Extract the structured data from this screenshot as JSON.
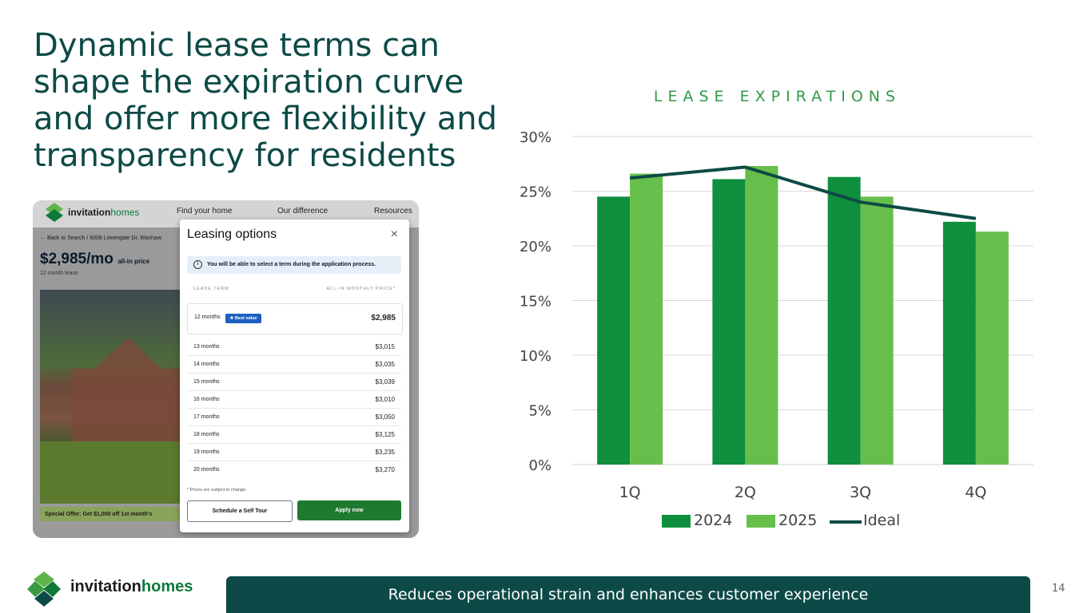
{
  "headline": {
    "lines": [
      "Dynamic lease terms can",
      "shape the expiration curve",
      "and offer more flexibility and",
      "transparency for residents"
    ]
  },
  "screenshot": {
    "brand_bold": "invitation",
    "brand_light": "homes",
    "nav": [
      "Find your home",
      "Our difference",
      "Resources"
    ],
    "back_link": "← Back to Search / 6008 Lowergate Dr, Waxhaw",
    "price": "$2,985/mo",
    "price_suffix": "all-in price",
    "lease_length": "12 month lease",
    "offer": "Special Offer: Get $1,000 off 1st month's",
    "modal": {
      "title": "Leasing options",
      "close": "×",
      "notice": "You will be able to select a term during the application process.",
      "col_term": "LEASE TERM",
      "col_price": "ALL-IN MONTHLY PRICE*",
      "best": {
        "term": "12 months",
        "badge": "★ Best value",
        "price": "$2,985"
      },
      "rows": [
        {
          "term": "13 months",
          "price": "$3,015"
        },
        {
          "term": "14 months",
          "price": "$3,035"
        },
        {
          "term": "15 months",
          "price": "$3,039"
        },
        {
          "term": "16 months",
          "price": "$3,010"
        },
        {
          "term": "17 months",
          "price": "$3,050"
        },
        {
          "term": "18 months",
          "price": "$3,125"
        },
        {
          "term": "19 months",
          "price": "$3,235"
        },
        {
          "term": "20 months",
          "price": "$3,270"
        }
      ],
      "disclaimer": "* Prices are subject to change.",
      "tour_button": "Schedule a Self Tour",
      "apply_button": "Apply now"
    }
  },
  "chart_data": {
    "type": "bar",
    "title": "LEASE EXPIRATIONS",
    "categories": [
      "1Q",
      "2Q",
      "3Q",
      "4Q"
    ],
    "series": [
      {
        "name": "2024",
        "type": "bar",
        "color": "#0f8f3e",
        "values": [
          24.5,
          26.1,
          26.3,
          22.2
        ]
      },
      {
        "name": "2025",
        "type": "bar",
        "color": "#66bf4a",
        "values": [
          26.6,
          27.3,
          24.5,
          21.3
        ]
      },
      {
        "name": "Ideal",
        "type": "line",
        "color": "#0d4a47",
        "values": [
          26.2,
          27.2,
          24.0,
          22.5
        ]
      }
    ],
    "ylim": [
      0,
      30
    ],
    "yticks": [
      "0%",
      "5%",
      "10%",
      "15%",
      "20%",
      "25%",
      "30%"
    ],
    "grid": true,
    "legend": "bottom"
  },
  "footer": {
    "brand_bold": "invitation",
    "brand_light": "homes",
    "banner": "Reduces operational strain and enhances customer experience",
    "page_number": "14"
  }
}
